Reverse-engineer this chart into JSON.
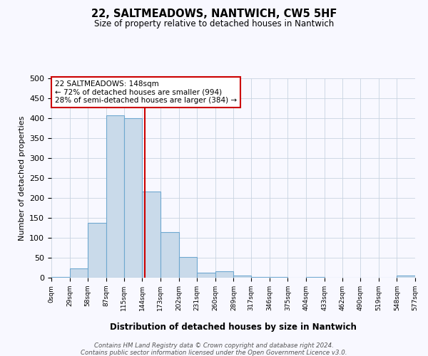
{
  "title": "22, SALTMEADOWS, NANTWICH, CW5 5HF",
  "subtitle": "Size of property relative to detached houses in Nantwich",
  "xlabel": "Distribution of detached houses by size in Nantwich",
  "ylabel": "Number of detached properties",
  "bin_edges": [
    0,
    29,
    58,
    87,
    115,
    144,
    173,
    202,
    231,
    260,
    289,
    317,
    346,
    375,
    404,
    433,
    462,
    490,
    519,
    548,
    577
  ],
  "bin_counts": [
    2,
    23,
    137,
    408,
    400,
    216,
    115,
    52,
    12,
    16,
    6,
    2,
    1,
    0,
    2,
    0,
    0,
    0,
    0,
    5
  ],
  "bar_color": "#c9daea",
  "bar_edge_color": "#6fa8d0",
  "marker_value": 148,
  "marker_color": "#cc0000",
  "ylim": [
    0,
    500
  ],
  "yticks": [
    0,
    50,
    100,
    150,
    200,
    250,
    300,
    350,
    400,
    450,
    500
  ],
  "annotation_title": "22 SALTMEADOWS: 148sqm",
  "annotation_line1": "← 72% of detached houses are smaller (994)",
  "annotation_line2": "28% of semi-detached houses are larger (384) →",
  "annotation_box_color": "#ffffff",
  "annotation_box_edge_color": "#cc0000",
  "footnote1": "Contains HM Land Registry data © Crown copyright and database right 2024.",
  "footnote2": "Contains public sector information licensed under the Open Government Licence v3.0.",
  "bg_color": "#f8f8ff",
  "grid_color": "#c8d4e0"
}
